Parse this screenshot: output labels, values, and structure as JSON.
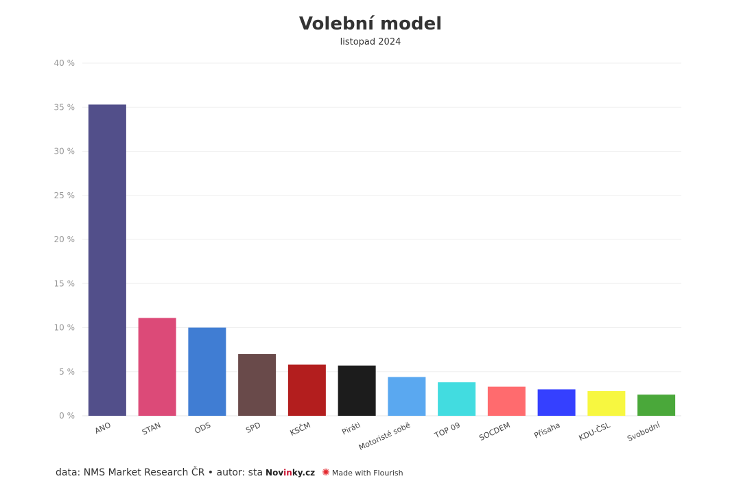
{
  "chart_data": {
    "type": "bar",
    "title": "Volební model",
    "subtitle": "listopad 2024",
    "xlabel": "",
    "ylabel": "",
    "ylim": [
      0,
      40
    ],
    "yticks": [
      "0 %",
      "5 %",
      "10 %",
      "15 %",
      "20 %",
      "25 %",
      "30 %",
      "35 %",
      "40 %"
    ],
    "grid": true,
    "categories": [
      "ANO",
      "STAN",
      "ODS",
      "SPD",
      "KSČM",
      "Piráti",
      "Motoristé sobě",
      "TOP 09",
      "SOCDEM",
      "Přísaha",
      "KDU-ČSL",
      "Svobodní"
    ],
    "values": [
      35.3,
      11.1,
      10.0,
      7.0,
      5.8,
      5.7,
      4.4,
      3.8,
      3.3,
      3.0,
      2.8,
      2.4
    ],
    "colors": [
      "#524f8a",
      "#dc4a78",
      "#407dd3",
      "#694a4a",
      "#b31e1e",
      "#1c1c1c",
      "#5aa8f0",
      "#42dce0",
      "#ff6b6e",
      "#3540ff",
      "#f7f740",
      "#4aa83a"
    ]
  },
  "footer": {
    "source": "data: NMS Market Research ČR • autor: sta",
    "brand_a": "Nov",
    "brand_b": "in",
    "brand_c": "ky.cz",
    "flourish": "Made with Flourish"
  }
}
